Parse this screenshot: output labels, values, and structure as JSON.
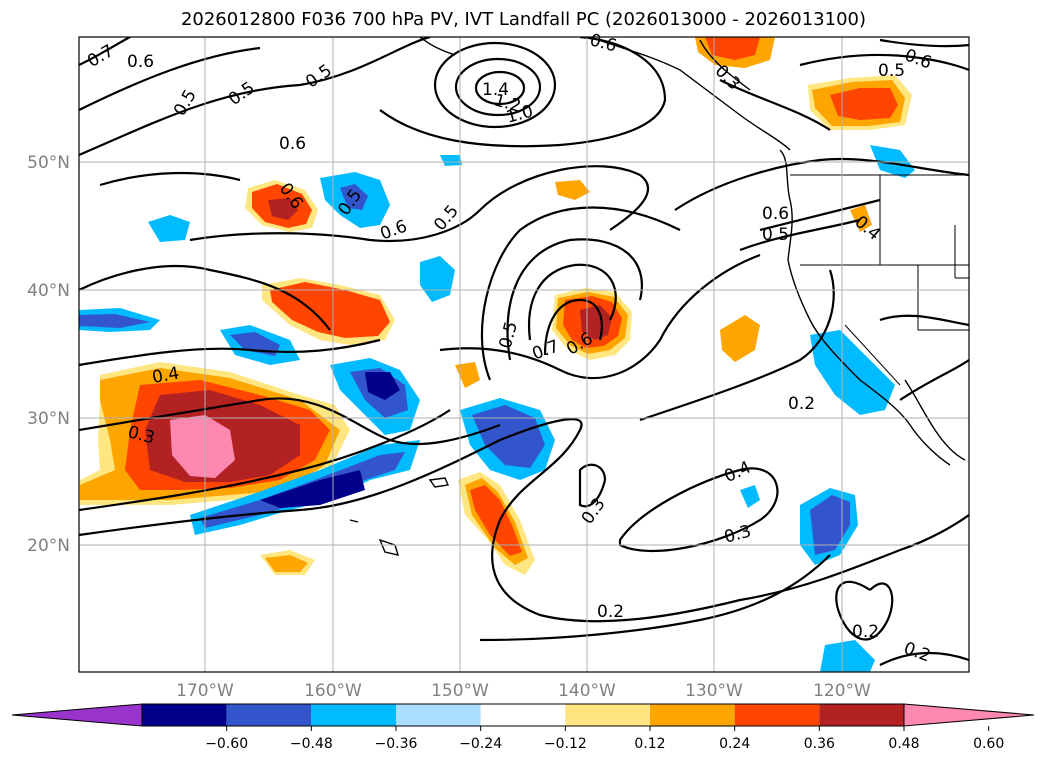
{
  "title": "2026012800 F036 700 hPa PV, IVT Landfall PC (2026013000 - 2026013100)",
  "lat_labels": [
    "50°N",
    "40°N",
    "30°N",
    "20°N"
  ],
  "lon_labels": [
    "170°W",
    "160°W",
    "150°W",
    "140°W",
    "130°W",
    "120°W"
  ],
  "colorbar": {
    "colors": [
      "#9933cc",
      "#00008b",
      "#3355cc",
      "#00bbff",
      "#aaddff",
      "#ffffff",
      "#ffe680",
      "#ffa500",
      "#ff4500",
      "#b22222",
      "#ff88b0"
    ],
    "ticks": [
      "−0.60",
      "−0.48",
      "−0.36",
      "−0.24",
      "−0.12",
      "0.12",
      "0.24",
      "0.36",
      "0.48",
      "0.60"
    ]
  },
  "contour_labels": [
    "0.7",
    "0.6",
    "0.5",
    "0.5",
    "1.4",
    "1.2",
    "1.0",
    "0.6",
    "0.5",
    "0.3",
    "0.6",
    "0.5",
    "0.6",
    "0.5",
    "0.6",
    "0.5",
    "0.6",
    "0.6",
    "0.5",
    "0.4",
    "0.5",
    "0.7",
    "0.6",
    "0.4",
    "0.3",
    "0.2",
    "0.4",
    "0.3",
    "0.3",
    "0.2",
    "0.2",
    "0.2"
  ]
}
